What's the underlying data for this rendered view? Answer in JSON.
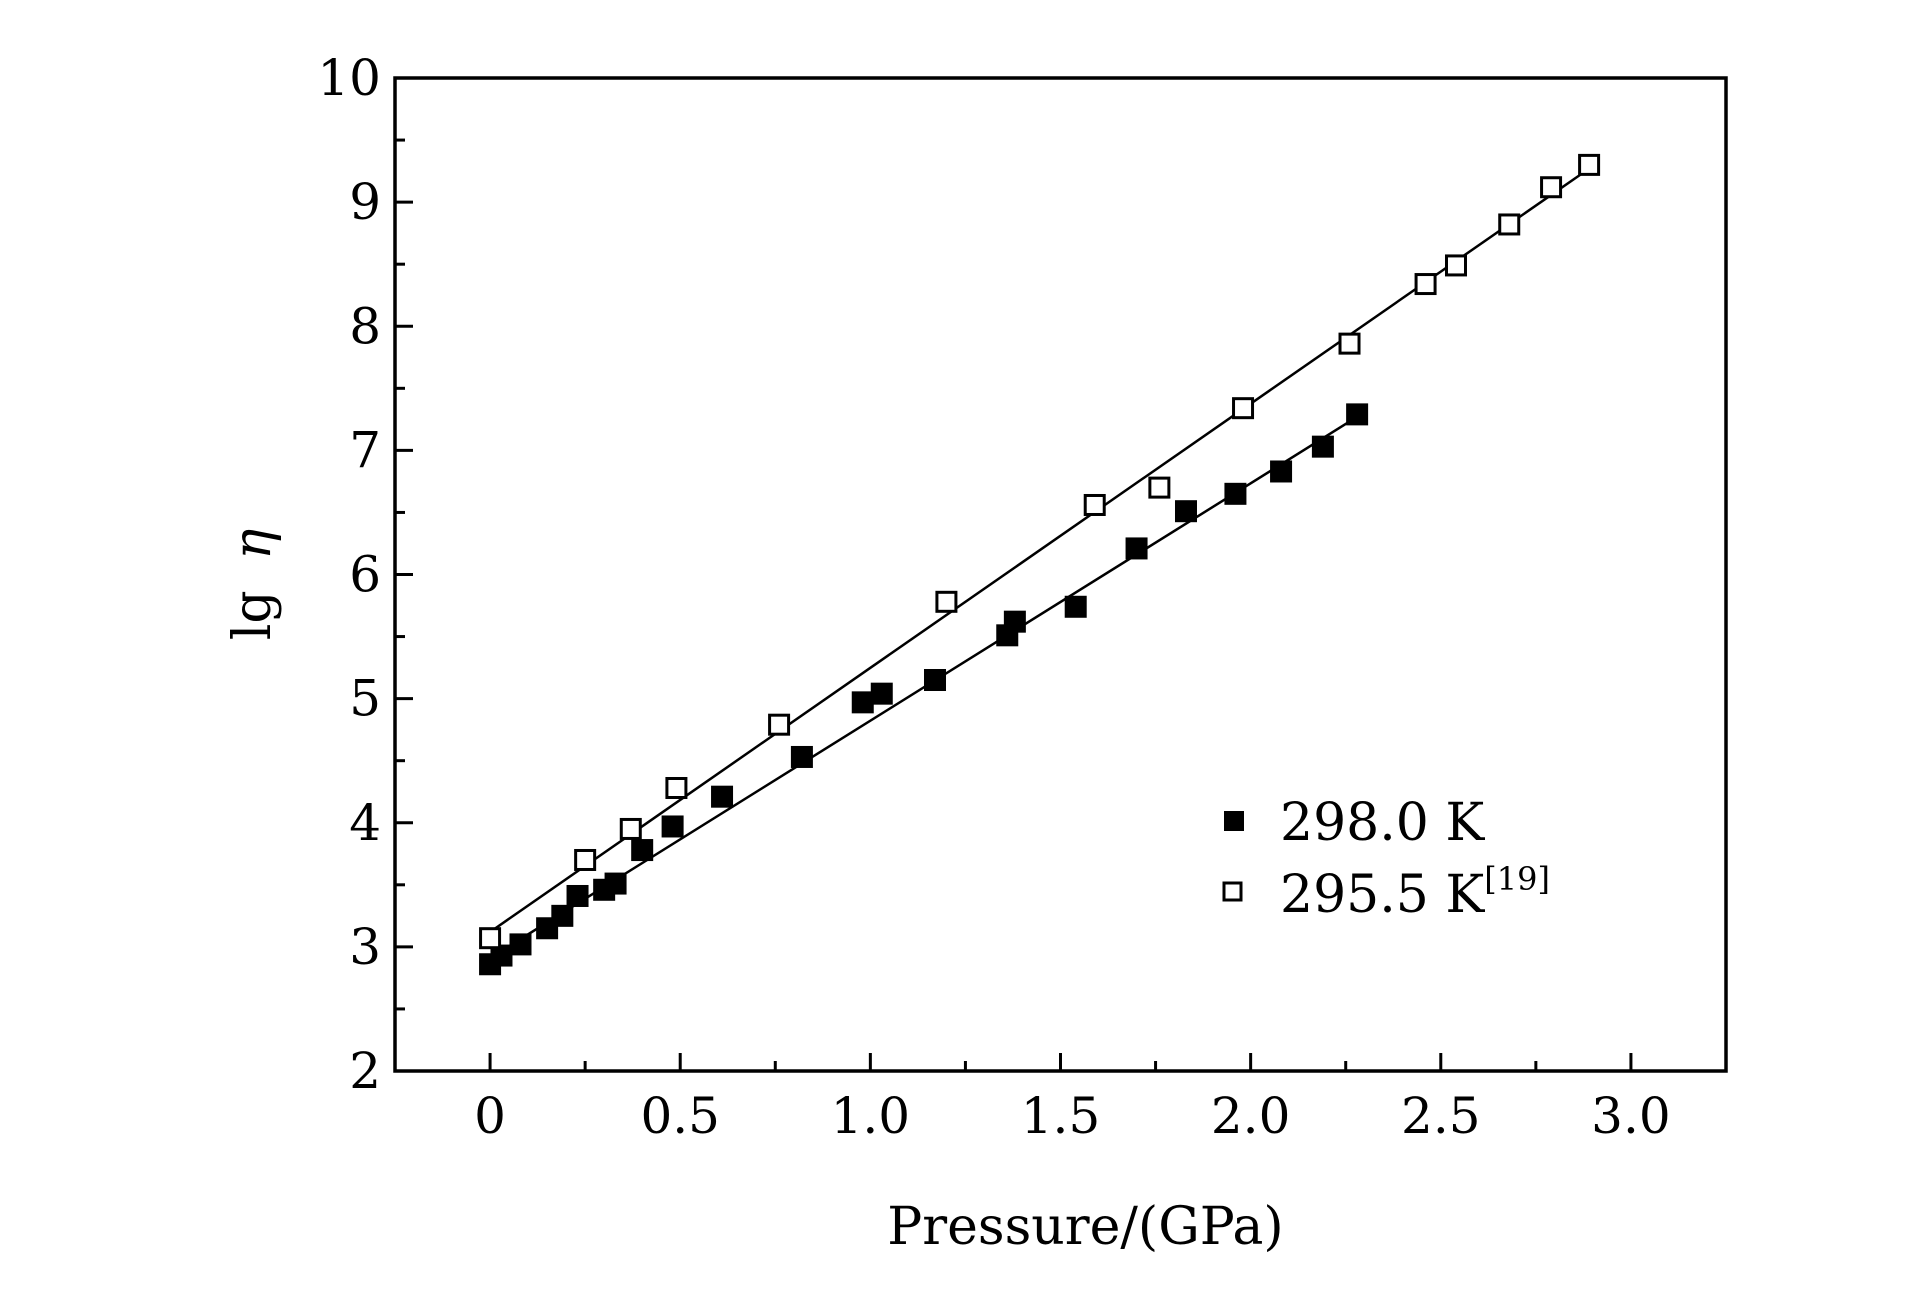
{
  "chart_data": {
    "type": "scatter",
    "xlabel": "Pressure/(GPa)",
    "ylabel_base": "lg",
    "ylabel_symbol": "η",
    "xlim": [
      -0.25,
      3.25
    ],
    "ylim": [
      2,
      10
    ],
    "x_ticks": [
      "0",
      "0.5",
      "1.0",
      "1.5",
      "2.0",
      "2.5",
      "3.0"
    ],
    "x_tick_values": [
      0,
      0.5,
      1.0,
      1.5,
      2.0,
      2.5,
      3.0
    ],
    "y_ticks": [
      "2",
      "3",
      "4",
      "5",
      "6",
      "7",
      "8",
      "9",
      "10"
    ],
    "y_tick_values": [
      2,
      3,
      4,
      5,
      6,
      7,
      8,
      9,
      10
    ],
    "grid": false,
    "legend_position": "bottom-right",
    "series": [
      {
        "name": "298.0 K",
        "name_sup": "",
        "marker": "filled-square",
        "color": "#000000",
        "x": [
          0.0,
          0.03,
          0.08,
          0.15,
          0.19,
          0.23,
          0.3,
          0.33,
          0.4,
          0.48,
          0.61,
          0.82,
          0.98,
          1.03,
          1.17,
          1.36,
          1.38,
          1.54,
          1.7,
          1.83,
          1.96,
          2.08,
          2.19,
          2.28
        ],
        "y": [
          2.86,
          2.93,
          3.02,
          3.15,
          3.25,
          3.41,
          3.46,
          3.51,
          3.78,
          3.97,
          4.21,
          4.53,
          4.97,
          5.04,
          5.15,
          5.51,
          5.62,
          5.74,
          6.21,
          6.51,
          6.65,
          6.83,
          7.03,
          7.29
        ],
        "fit": {
          "x": [
            0.0,
            2.28
          ],
          "y": [
            2.91,
            7.27
          ]
        }
      },
      {
        "name": "295.5 K",
        "name_sup": "[19]",
        "marker": "open-square",
        "color": "#000000",
        "x": [
          0.0,
          0.25,
          0.37,
          0.49,
          0.76,
          1.2,
          1.59,
          1.76,
          1.98,
          2.26,
          2.46,
          2.54,
          2.68,
          2.79,
          2.89
        ],
        "y": [
          3.07,
          3.7,
          3.95,
          4.28,
          4.79,
          5.78,
          6.56,
          6.7,
          7.34,
          7.86,
          8.34,
          8.49,
          8.82,
          9.12,
          9.3
        ],
        "fit": {
          "x": [
            0.0,
            2.89
          ],
          "y": [
            3.12,
            9.27
          ]
        }
      }
    ]
  }
}
